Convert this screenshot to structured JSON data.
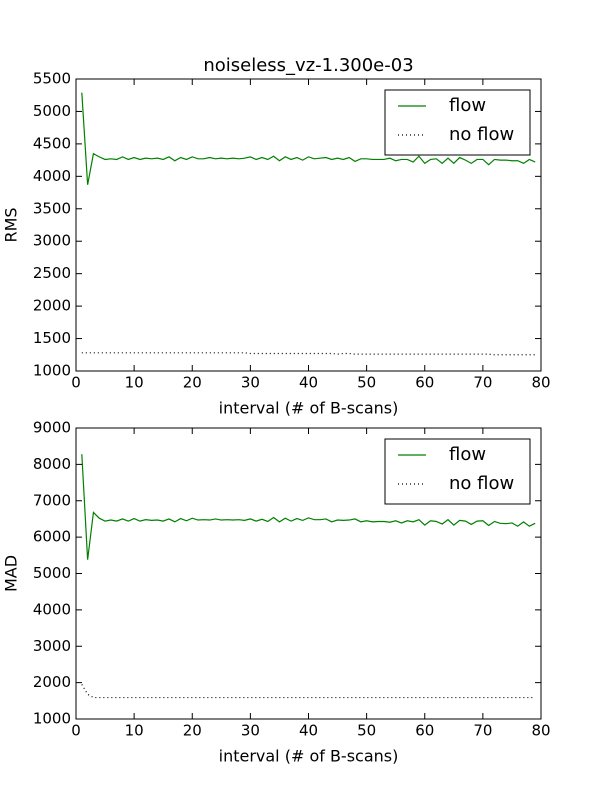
{
  "chart_data": [
    {
      "type": "line",
      "title": "noiseless_vz-1.300e-03",
      "xlabel": "interval (# of B-scans)",
      "ylabel": "RMS",
      "x": [
        1,
        2,
        3,
        4,
        5,
        6,
        7,
        8,
        9,
        10,
        11,
        12,
        13,
        14,
        15,
        16,
        17,
        18,
        19,
        20,
        21,
        22,
        23,
        24,
        25,
        26,
        27,
        28,
        29,
        30,
        31,
        32,
        33,
        34,
        35,
        36,
        37,
        38,
        39,
        40,
        41,
        42,
        43,
        44,
        45,
        46,
        47,
        48,
        49,
        50,
        51,
        52,
        53,
        54,
        55,
        56,
        57,
        58,
        59,
        60,
        61,
        62,
        63,
        64,
        65,
        66,
        67,
        68,
        69,
        70,
        71,
        72,
        73,
        74,
        75,
        76,
        77,
        78,
        79
      ],
      "series": [
        {
          "name": "flow",
          "color": "#008000",
          "linestyle": "solid",
          "values": [
            5290,
            3870,
            4350,
            4300,
            4260,
            4270,
            4260,
            4300,
            4260,
            4290,
            4260,
            4280,
            4270,
            4280,
            4260,
            4300,
            4240,
            4290,
            4260,
            4300,
            4270,
            4270,
            4290,
            4270,
            4280,
            4270,
            4280,
            4270,
            4280,
            4300,
            4260,
            4290,
            4260,
            4310,
            4240,
            4300,
            4260,
            4290,
            4250,
            4300,
            4270,
            4280,
            4290,
            4260,
            4280,
            4260,
            4290,
            4230,
            4270,
            4270,
            4260,
            4260,
            4260,
            4280,
            4240,
            4260,
            4260,
            4220,
            4310,
            4200,
            4260,
            4270,
            4200,
            4280,
            4200,
            4290,
            4250,
            4200,
            4260,
            4260,
            4180,
            4260,
            4250,
            4250,
            4240,
            4240,
            4200,
            4260,
            4220
          ]
        },
        {
          "name": "no flow",
          "color": "#000000",
          "linestyle": "dotted",
          "values": [
            1280,
            1280,
            1280,
            1280,
            1280,
            1280,
            1280,
            1280,
            1280,
            1280,
            1280,
            1280,
            1280,
            1280,
            1280,
            1280,
            1280,
            1280,
            1280,
            1280,
            1280,
            1280,
            1280,
            1280,
            1280,
            1280,
            1280,
            1280,
            1280,
            1270,
            1270,
            1270,
            1270,
            1270,
            1270,
            1270,
            1270,
            1270,
            1270,
            1270,
            1270,
            1270,
            1270,
            1270,
            1260,
            1270,
            1270,
            1260,
            1260,
            1260,
            1260,
            1260,
            1260,
            1260,
            1260,
            1260,
            1260,
            1260,
            1260,
            1260,
            1260,
            1260,
            1260,
            1260,
            1260,
            1260,
            1260,
            1260,
            1260,
            1260,
            1260,
            1250,
            1250,
            1250,
            1250,
            1250,
            1250,
            1250,
            1250
          ]
        }
      ],
      "xlim": [
        0,
        80
      ],
      "xticks": [
        0,
        10,
        20,
        30,
        40,
        50,
        60,
        70,
        80
      ],
      "ylim": [
        1000,
        5500
      ],
      "yticks": [
        1000,
        1500,
        2000,
        2500,
        3000,
        3500,
        4000,
        4500,
        5000,
        5500
      ],
      "legend": "upper right"
    },
    {
      "type": "line",
      "xlabel": "interval (# of B-scans)",
      "ylabel": "MAD",
      "x": [
        1,
        2,
        3,
        4,
        5,
        6,
        7,
        8,
        9,
        10,
        11,
        12,
        13,
        14,
        15,
        16,
        17,
        18,
        19,
        20,
        21,
        22,
        23,
        24,
        25,
        26,
        27,
        28,
        29,
        30,
        31,
        32,
        33,
        34,
        35,
        36,
        37,
        38,
        39,
        40,
        41,
        42,
        43,
        44,
        45,
        46,
        47,
        48,
        49,
        50,
        51,
        52,
        53,
        54,
        55,
        56,
        57,
        58,
        59,
        60,
        61,
        62,
        63,
        64,
        65,
        66,
        67,
        68,
        69,
        70,
        71,
        72,
        73,
        74,
        75,
        76,
        77,
        78,
        79
      ],
      "series": [
        {
          "name": "flow",
          "color": "#008000",
          "linestyle": "solid",
          "values": [
            8280,
            5380,
            6680,
            6520,
            6440,
            6470,
            6440,
            6500,
            6440,
            6510,
            6440,
            6480,
            6460,
            6470,
            6440,
            6500,
            6420,
            6510,
            6450,
            6520,
            6470,
            6480,
            6470,
            6500,
            6470,
            6480,
            6470,
            6480,
            6460,
            6500,
            6440,
            6490,
            6430,
            6540,
            6420,
            6520,
            6440,
            6510,
            6460,
            6530,
            6480,
            6480,
            6500,
            6420,
            6470,
            6460,
            6470,
            6500,
            6420,
            6450,
            6420,
            6430,
            6430,
            6410,
            6450,
            6390,
            6450,
            6420,
            6480,
            6330,
            6450,
            6430,
            6360,
            6480,
            6330,
            6460,
            6440,
            6350,
            6440,
            6450,
            6320,
            6430,
            6380,
            6370,
            6390,
            6300,
            6420,
            6300,
            6380
          ]
        },
        {
          "name": "no flow",
          "color": "#000000",
          "linestyle": "dotted",
          "values": [
            1950,
            1680,
            1590,
            1590,
            1590,
            1590,
            1590,
            1590,
            1590,
            1590,
            1590,
            1590,
            1590,
            1590,
            1590,
            1590,
            1590,
            1590,
            1590,
            1590,
            1590,
            1590,
            1590,
            1590,
            1590,
            1590,
            1590,
            1590,
            1590,
            1590,
            1590,
            1590,
            1590,
            1590,
            1590,
            1590,
            1590,
            1590,
            1590,
            1590,
            1590,
            1590,
            1590,
            1590,
            1590,
            1590,
            1590,
            1590,
            1590,
            1590,
            1590,
            1590,
            1590,
            1590,
            1590,
            1590,
            1590,
            1590,
            1590,
            1590,
            1590,
            1590,
            1590,
            1590,
            1590,
            1590,
            1590,
            1590,
            1590,
            1590,
            1590,
            1590,
            1590,
            1590,
            1590,
            1590,
            1590,
            1590,
            1590
          ]
        }
      ],
      "xlim": [
        0,
        80
      ],
      "xticks": [
        0,
        10,
        20,
        30,
        40,
        50,
        60,
        70,
        80
      ],
      "ylim": [
        1000,
        9000
      ],
      "yticks": [
        1000,
        2000,
        3000,
        4000,
        5000,
        6000,
        7000,
        8000,
        9000
      ],
      "legend": "upper right"
    }
  ]
}
